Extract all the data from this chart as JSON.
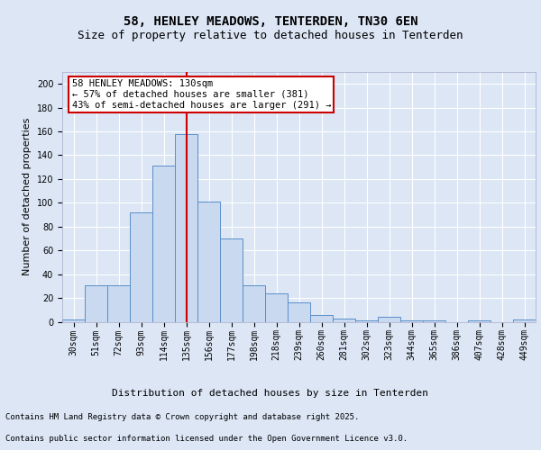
{
  "title_line1": "58, HENLEY MEADOWS, TENTERDEN, TN30 6EN",
  "title_line2": "Size of property relative to detached houses in Tenterden",
  "xlabel": "Distribution of detached houses by size in Tenterden",
  "ylabel": "Number of detached properties",
  "categories": [
    "30sqm",
    "51sqm",
    "72sqm",
    "93sqm",
    "114sqm",
    "135sqm",
    "156sqm",
    "177sqm",
    "198sqm",
    "218sqm",
    "239sqm",
    "260sqm",
    "281sqm",
    "302sqm",
    "323sqm",
    "344sqm",
    "365sqm",
    "386sqm",
    "407sqm",
    "428sqm",
    "449sqm"
  ],
  "values": [
    2,
    31,
    31,
    92,
    131,
    158,
    101,
    70,
    31,
    24,
    16,
    6,
    3,
    1,
    4,
    1,
    1,
    0,
    1,
    0,
    2
  ],
  "bar_color": "#c8d9f0",
  "bar_edge_color": "#5b8fc9",
  "vline_x_index": 5,
  "vline_color": "#cc0000",
  "annotation_text": "58 HENLEY MEADOWS: 130sqm\n← 57% of detached houses are smaller (381)\n43% of semi-detached houses are larger (291) →",
  "annotation_box_facecolor": "#ffffff",
  "annotation_box_edgecolor": "#cc0000",
  "ylim": [
    0,
    210
  ],
  "yticks": [
    0,
    20,
    40,
    60,
    80,
    100,
    120,
    140,
    160,
    180,
    200
  ],
  "background_color": "#dce6f5",
  "plot_bg_color": "#dce6f5",
  "grid_color": "#ffffff",
  "footer_line1": "Contains HM Land Registry data © Crown copyright and database right 2025.",
  "footer_line2": "Contains public sector information licensed under the Open Government Licence v3.0.",
  "title_fontsize": 10,
  "subtitle_fontsize": 9,
  "axis_label_fontsize": 8,
  "tick_fontsize": 7,
  "annotation_fontsize": 7.5,
  "footer_fontsize": 6.5
}
